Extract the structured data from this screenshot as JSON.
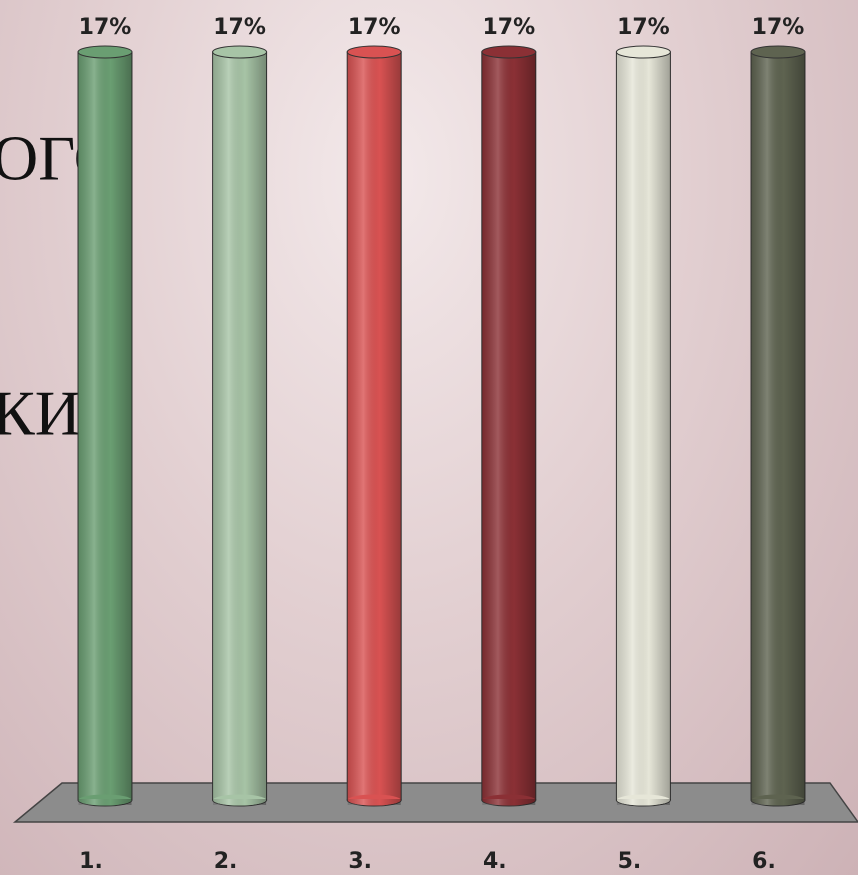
{
  "background_text": [
    "ОГО",
    "КИ"
  ],
  "chart_data": {
    "type": "bar",
    "categories": [
      "1.",
      "2.",
      "3.",
      "4.",
      "5.",
      "6."
    ],
    "values": [
      17,
      17,
      17,
      17,
      17,
      17
    ],
    "value_labels": [
      "17%",
      "17%",
      "17%",
      "17%",
      "17%",
      "17%"
    ],
    "colors": [
      "#6a9e72",
      "#a7c4a6",
      "#d95252",
      "#8b3035",
      "#e6e6d8",
      "#5e6350"
    ]
  }
}
